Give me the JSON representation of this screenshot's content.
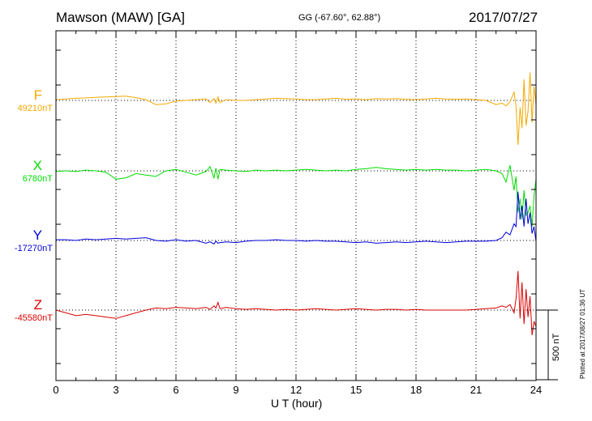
{
  "header": {
    "title": "Mawson (MAW)  [GA]",
    "coords": "GG (-67.60°,  62.88°)",
    "date": "2017/07/27"
  },
  "scale_label": "500 nT",
  "plotted_label": "Plotted at 2017/08/27 01:36 UT",
  "colors": {
    "F": "#f5a800",
    "X": "#00dd00",
    "Y": "#0000dd",
    "Z": "#dd0000"
  },
  "chart_data": {
    "type": "line",
    "title": "Mawson (MAW)  [GA]",
    "xlabel": "U T (hour)",
    "ylabel": "",
    "xlim": [
      0,
      24
    ],
    "x_ticks": [
      "0",
      "3",
      "6",
      "9",
      "12",
      "15",
      "18",
      "21",
      "24"
    ],
    "grid": true,
    "scale_nT": 500,
    "series": [
      {
        "name": "F",
        "baseline": "49210nT",
        "x": [
          0,
          0.5,
          1,
          1.5,
          2,
          2.5,
          3,
          3.5,
          4,
          4.5,
          5,
          5.5,
          6,
          6.5,
          7,
          7.5,
          7.7,
          7.9,
          8,
          8.1,
          8.2,
          8.5,
          9,
          9.5,
          10,
          10.5,
          11,
          11.5,
          12,
          12.5,
          13,
          13.5,
          14,
          14.5,
          15,
          15.5,
          16,
          16.5,
          17,
          17.5,
          18,
          18.5,
          19,
          19.5,
          20,
          20.5,
          21,
          21.5,
          22,
          22.3,
          22.5,
          22.7,
          22.9,
          23,
          23.1,
          23.2,
          23.3,
          23.4,
          23.5,
          23.6,
          23.7,
          23.8,
          23.9,
          24
        ],
        "y": [
          5,
          10,
          15,
          18,
          22,
          25,
          28,
          30,
          20,
          5,
          -30,
          -25,
          -5,
          0,
          5,
          10,
          -15,
          12,
          -20,
          25,
          -15,
          5,
          0,
          0,
          5,
          10,
          15,
          12,
          10,
          5,
          5,
          10,
          15,
          8,
          10,
          5,
          12,
          10,
          12,
          8,
          5,
          10,
          15,
          10,
          8,
          10,
          5,
          0,
          -30,
          -20,
          -40,
          -10,
          60,
          -40,
          -320,
          -50,
          -200,
          150,
          -180,
          -80,
          200,
          -160,
          100,
          -30
        ]
      },
      {
        "name": "X",
        "baseline": "6780nT",
        "x": [
          0,
          0.5,
          1,
          1.5,
          2,
          2.5,
          3,
          3.5,
          4,
          4.5,
          5,
          5.5,
          6,
          6.5,
          7,
          7.5,
          7.7,
          7.9,
          8,
          8.1,
          8.2,
          8.5,
          9,
          9.5,
          10,
          10.5,
          11,
          11.5,
          12,
          12.5,
          13,
          13.5,
          14,
          14.5,
          15,
          15.5,
          16,
          16.5,
          17,
          17.5,
          18,
          18.5,
          19,
          19.5,
          20,
          20.5,
          21,
          21.5,
          22,
          22.3,
          22.5,
          22.7,
          22.9,
          23,
          23.1,
          23.2,
          23.3,
          23.4,
          23.5,
          23.6,
          23.7,
          23.8,
          23.9,
          24
        ],
        "y": [
          -5,
          0,
          -5,
          5,
          0,
          -10,
          -60,
          -50,
          -20,
          -30,
          -40,
          0,
          10,
          -10,
          -30,
          -5,
          30,
          -50,
          20,
          -60,
          10,
          5,
          0,
          -5,
          5,
          0,
          5,
          0,
          5,
          10,
          5,
          0,
          5,
          0,
          10,
          15,
          25,
          15,
          10,
          5,
          10,
          5,
          10,
          5,
          5,
          0,
          5,
          10,
          0,
          -20,
          -80,
          40,
          -140,
          -40,
          -300,
          -200,
          -350,
          -140,
          -320,
          -300,
          -250,
          -400,
          -180,
          -60
        ]
      },
      {
        "name": "Y",
        "baseline": "-17270nT",
        "x": [
          0,
          0.5,
          1,
          1.5,
          2,
          2.5,
          3,
          3.5,
          4,
          4.5,
          5,
          5.5,
          6,
          6.5,
          7,
          7.5,
          7.7,
          7.9,
          8,
          8.1,
          8.2,
          8.5,
          9,
          9.5,
          10,
          10.5,
          11,
          11.5,
          12,
          12.5,
          13,
          13.5,
          14,
          14.5,
          15,
          15.5,
          16,
          16.5,
          17,
          17.5,
          18,
          18.5,
          19,
          19.5,
          20,
          20.5,
          21,
          21.5,
          22,
          22.3,
          22.5,
          22.7,
          22.9,
          23,
          23.1,
          23.2,
          23.3,
          23.4,
          23.5,
          23.6,
          23.7,
          23.8,
          23.9,
          24
        ],
        "y": [
          5,
          5,
          0,
          10,
          5,
          10,
          15,
          10,
          15,
          20,
          0,
          -5,
          5,
          -5,
          0,
          -20,
          -10,
          -25,
          -5,
          -20,
          -15,
          -10,
          -15,
          -5,
          0,
          0,
          5,
          0,
          0,
          -5,
          0,
          -5,
          -5,
          -10,
          -15,
          -10,
          -20,
          -15,
          -10,
          -15,
          -10,
          -5,
          -10,
          -15,
          -10,
          -5,
          -5,
          -5,
          0,
          20,
          60,
          40,
          120,
          100,
          350,
          150,
          250,
          100,
          300,
          120,
          200,
          50,
          100,
          -10
        ]
      },
      {
        "name": "Z",
        "baseline": "-45580nT",
        "x": [
          0,
          0.5,
          1,
          1.5,
          2,
          2.5,
          3,
          3.5,
          4,
          4.5,
          5,
          5.5,
          6,
          6.5,
          7,
          7.5,
          7.7,
          7.9,
          8,
          8.1,
          8.2,
          8.5,
          9,
          9.5,
          10,
          10.5,
          11,
          11.5,
          12,
          12.5,
          13,
          13.5,
          14,
          14.5,
          15,
          15.5,
          16,
          16.5,
          17,
          17.5,
          18,
          18.5,
          19,
          19.5,
          20,
          20.5,
          21,
          21.5,
          22,
          22.3,
          22.5,
          22.7,
          22.9,
          23,
          23.1,
          23.2,
          23.3,
          23.4,
          23.5,
          23.6,
          23.7,
          23.8,
          23.9,
          24
        ],
        "y": [
          0,
          -20,
          -40,
          -30,
          -40,
          -50,
          -60,
          -40,
          -20,
          0,
          15,
          10,
          20,
          15,
          10,
          20,
          5,
          30,
          15,
          55,
          10,
          20,
          10,
          5,
          10,
          5,
          0,
          5,
          0,
          5,
          10,
          5,
          0,
          5,
          10,
          5,
          0,
          5,
          5,
          0,
          5,
          0,
          0,
          0,
          0,
          0,
          5,
          10,
          15,
          30,
          20,
          40,
          -20,
          80,
          280,
          -60,
          200,
          -100,
          150,
          -50,
          100,
          -180,
          -80,
          -120
        ]
      }
    ]
  }
}
